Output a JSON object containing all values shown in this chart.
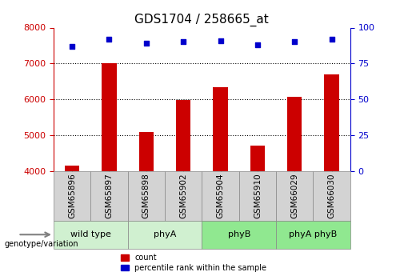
{
  "title": "GDS1704 / 258665_at",
  "samples": [
    "GSM65896",
    "GSM65897",
    "GSM65898",
    "GSM65902",
    "GSM65904",
    "GSM65910",
    "GSM66029",
    "GSM66030"
  ],
  "counts": [
    4150,
    7000,
    5100,
    5980,
    6350,
    4720,
    6080,
    6700
  ],
  "percentile_ranks": [
    87,
    92,
    89,
    90,
    91,
    88,
    90,
    92
  ],
  "groups": [
    {
      "label": "wild type",
      "start": 0,
      "end": 2,
      "color": "#d0f0d0"
    },
    {
      "label": "phyA",
      "start": 2,
      "end": 4,
      "color": "#d0f0d0"
    },
    {
      "label": "phyB",
      "start": 4,
      "end": 6,
      "color": "#90e890"
    },
    {
      "label": "phyA phyB",
      "start": 6,
      "end": 8,
      "color": "#90e890"
    }
  ],
  "bar_color": "#cc0000",
  "dot_color": "#0000cc",
  "ylim_left": [
    4000,
    8000
  ],
  "ylim_right": [
    0,
    100
  ],
  "yticks_left": [
    4000,
    5000,
    6000,
    7000,
    8000
  ],
  "yticks_right": [
    0,
    25,
    50,
    75,
    100
  ],
  "grid_values": [
    5000,
    6000,
    7000
  ],
  "bar_width": 0.4,
  "xlabel_rotation": 90,
  "title_fontsize": 11,
  "tick_fontsize": 8,
  "label_fontsize": 8
}
